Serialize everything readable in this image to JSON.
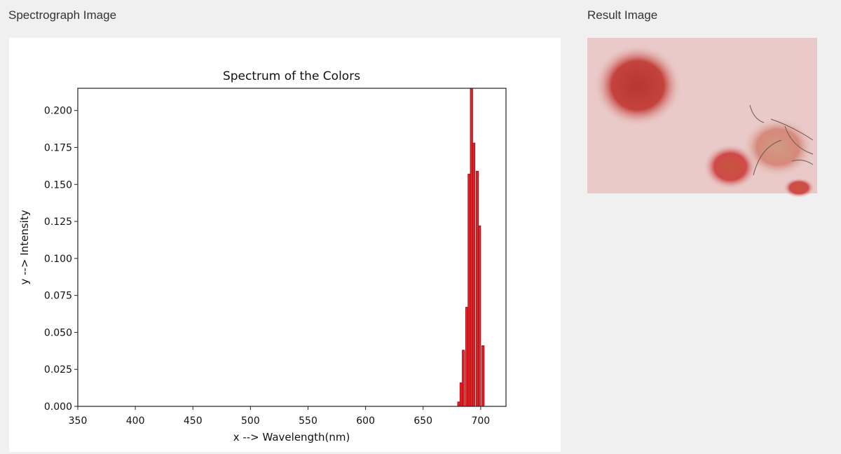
{
  "panels": [
    {
      "title": "Spectrograph Image"
    },
    {
      "title": "Result Image"
    }
  ],
  "chart_data": {
    "type": "bar",
    "title": "Spectrum of the Colors",
    "x_label": "x --> Wavelength(nm)",
    "y_label": "y --> Intensity",
    "x": [
      681,
      683,
      685,
      688,
      690,
      692,
      694,
      697,
      699,
      702
    ],
    "values": [
      0.003,
      0.016,
      0.038,
      0.067,
      0.157,
      0.22,
      0.178,
      0.159,
      0.122,
      0.041
    ],
    "color": "#e32228",
    "edgecolor": "#9e0e12",
    "xlim": [
      350,
      722
    ],
    "xticks": [
      350,
      400,
      450,
      500,
      550,
      600,
      650,
      700
    ],
    "ylim": [
      0,
      0.215
    ],
    "yticks": [
      {
        "value": 0,
        "label": "0.000"
      },
      {
        "value": 0.025,
        "label": "0.025"
      },
      {
        "value": 0.05,
        "label": "0.050"
      },
      {
        "value": 0.075,
        "label": "0.075"
      },
      {
        "value": 0.1,
        "label": "0.100"
      },
      {
        "value": 0.125,
        "label": "0.125"
      },
      {
        "value": 0.15,
        "label": "0.150"
      },
      {
        "value": 0.175,
        "label": "0.175"
      },
      {
        "value": 0.2,
        "label": "0.200"
      }
    ],
    "grid": false
  }
}
